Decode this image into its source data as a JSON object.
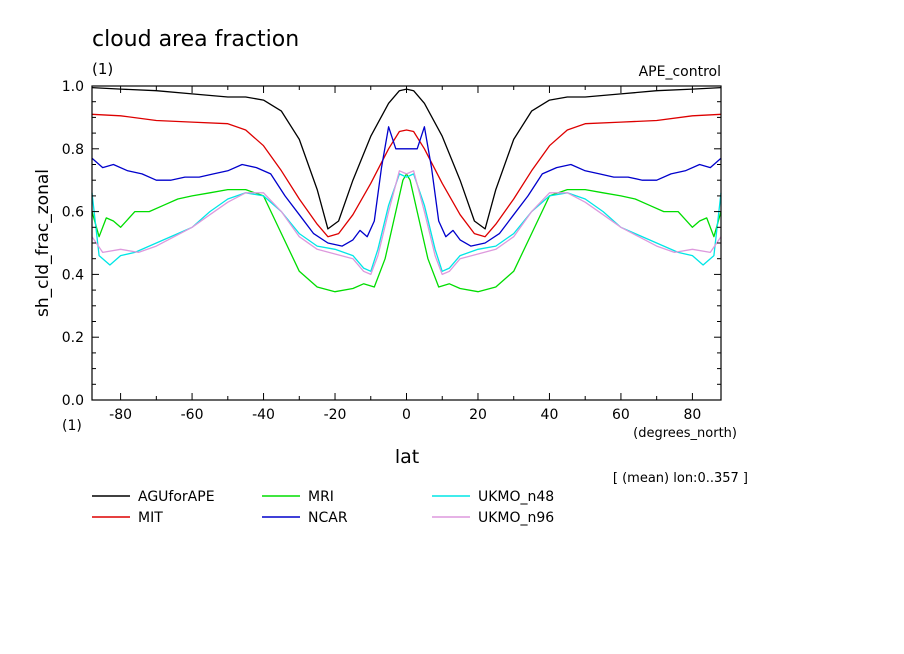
{
  "chart_data": {
    "type": "line",
    "title": "cloud area fraction",
    "units_top": "(1)",
    "units_bottom": "(1)",
    "experiment": "APE_control",
    "xlabel": "lat",
    "xunits": "(degrees_north)",
    "ylabel": "sh_cld_frac_zonal",
    "annotation": "[ (mean) lon:0..357 ]",
    "xlim": [
      -88,
      88
    ],
    "ylim": [
      0.0,
      1.0
    ],
    "xticks": [
      -80,
      -60,
      -40,
      -20,
      0,
      20,
      40,
      60,
      80
    ],
    "xtick_labels": [
      "-80",
      "-60",
      "-40",
      "-20",
      "0",
      "20",
      "40",
      "60",
      "80"
    ],
    "yticks": [
      0.0,
      0.2,
      0.4,
      0.6,
      0.8,
      1.0
    ],
    "ytick_labels": [
      "0.0",
      "0.2",
      "0.4",
      "0.6",
      "0.8",
      "1.0"
    ],
    "grid": false,
    "legend_position": "bottom",
    "series": [
      {
        "name": "AGUforAPE",
        "color": "#000000",
        "x": [
          -88,
          -80,
          -70,
          -60,
          -50,
          -45,
          -40,
          -35,
          -30,
          -25,
          -22,
          -19,
          -15,
          -10,
          -5,
          -2,
          0,
          2,
          5,
          10,
          15,
          19,
          22,
          25,
          30,
          35,
          40,
          45,
          50,
          60,
          70,
          80,
          88
        ],
        "y": [
          0.995,
          0.99,
          0.985,
          0.975,
          0.965,
          0.965,
          0.955,
          0.92,
          0.83,
          0.67,
          0.545,
          0.57,
          0.7,
          0.84,
          0.945,
          0.985,
          0.99,
          0.985,
          0.945,
          0.84,
          0.7,
          0.57,
          0.545,
          0.67,
          0.83,
          0.92,
          0.955,
          0.965,
          0.965,
          0.975,
          0.985,
          0.99,
          0.995
        ]
      },
      {
        "name": "MIT",
        "color": "#dd0000",
        "x": [
          -88,
          -80,
          -70,
          -60,
          -50,
          -45,
          -40,
          -35,
          -30,
          -25,
          -22,
          -19,
          -15,
          -10,
          -5,
          -2,
          0,
          2,
          5,
          10,
          15,
          19,
          22,
          25,
          30,
          35,
          40,
          45,
          50,
          60,
          70,
          80,
          88
        ],
        "y": [
          0.91,
          0.905,
          0.89,
          0.885,
          0.88,
          0.86,
          0.81,
          0.73,
          0.64,
          0.56,
          0.52,
          0.53,
          0.59,
          0.69,
          0.8,
          0.855,
          0.86,
          0.855,
          0.8,
          0.69,
          0.59,
          0.53,
          0.52,
          0.56,
          0.64,
          0.73,
          0.81,
          0.86,
          0.88,
          0.885,
          0.89,
          0.905,
          0.91
        ]
      },
      {
        "name": "MRI",
        "color": "#00dd00",
        "x": [
          -88,
          -86,
          -84,
          -82,
          -80,
          -76,
          -72,
          -68,
          -64,
          -60,
          -55,
          -50,
          -45,
          -40,
          -35,
          -30,
          -25,
          -20,
          -15,
          -12,
          -9,
          -6,
          -3,
          -1,
          0,
          1,
          3,
          6,
          9,
          12,
          15,
          20,
          25,
          30,
          35,
          40,
          45,
          50,
          55,
          60,
          64,
          68,
          72,
          76,
          80,
          82,
          84,
          86,
          88
        ],
        "y": [
          0.6,
          0.52,
          0.58,
          0.57,
          0.55,
          0.6,
          0.6,
          0.62,
          0.64,
          0.65,
          0.66,
          0.67,
          0.67,
          0.65,
          0.53,
          0.41,
          0.36,
          0.345,
          0.355,
          0.37,
          0.36,
          0.45,
          0.6,
          0.7,
          0.72,
          0.7,
          0.6,
          0.45,
          0.36,
          0.37,
          0.355,
          0.345,
          0.36,
          0.41,
          0.53,
          0.65,
          0.67,
          0.67,
          0.66,
          0.65,
          0.64,
          0.62,
          0.6,
          0.6,
          0.55,
          0.57,
          0.58,
          0.52,
          0.6
        ]
      },
      {
        "name": "NCAR",
        "color": "#0000cc",
        "x": [
          -88,
          -85,
          -82,
          -78,
          -74,
          -70,
          -66,
          -62,
          -58,
          -54,
          -50,
          -46,
          -42,
          -38,
          -34,
          -30,
          -26,
          -22,
          -18,
          -15,
          -13,
          -11,
          -9,
          -7,
          -5,
          -3,
          -1,
          0,
          1,
          3,
          5,
          7,
          9,
          11,
          13,
          15,
          18,
          22,
          26,
          30,
          34,
          38,
          42,
          46,
          50,
          54,
          58,
          62,
          66,
          70,
          74,
          78,
          82,
          85,
          88
        ],
        "y": [
          0.77,
          0.74,
          0.75,
          0.73,
          0.72,
          0.7,
          0.7,
          0.71,
          0.71,
          0.72,
          0.73,
          0.75,
          0.74,
          0.72,
          0.65,
          0.59,
          0.53,
          0.5,
          0.49,
          0.51,
          0.54,
          0.52,
          0.57,
          0.74,
          0.87,
          0.8,
          0.8,
          0.8,
          0.8,
          0.8,
          0.87,
          0.74,
          0.57,
          0.52,
          0.54,
          0.51,
          0.49,
          0.5,
          0.53,
          0.59,
          0.65,
          0.72,
          0.74,
          0.75,
          0.73,
          0.72,
          0.71,
          0.71,
          0.7,
          0.7,
          0.72,
          0.73,
          0.75,
          0.74,
          0.77
        ]
      },
      {
        "name": "UKMO_n48",
        "color": "#00e6e6",
        "x": [
          -88,
          -86,
          -83,
          -80,
          -76,
          -72,
          -68,
          -64,
          -60,
          -55,
          -50,
          -45,
          -40,
          -35,
          -30,
          -25,
          -20,
          -15,
          -12,
          -10,
          -8,
          -5,
          -2,
          0,
          2,
          5,
          8,
          10,
          12,
          15,
          20,
          25,
          30,
          35,
          40,
          45,
          50,
          55,
          60,
          64,
          68,
          72,
          76,
          80,
          83,
          86,
          88
        ],
        "y": [
          0.66,
          0.46,
          0.43,
          0.46,
          0.47,
          0.49,
          0.51,
          0.53,
          0.55,
          0.6,
          0.64,
          0.66,
          0.65,
          0.6,
          0.53,
          0.49,
          0.48,
          0.46,
          0.42,
          0.41,
          0.48,
          0.62,
          0.72,
          0.71,
          0.72,
          0.62,
          0.48,
          0.41,
          0.42,
          0.46,
          0.48,
          0.49,
          0.53,
          0.6,
          0.65,
          0.66,
          0.64,
          0.6,
          0.55,
          0.53,
          0.51,
          0.49,
          0.47,
          0.46,
          0.43,
          0.46,
          0.66
        ]
      },
      {
        "name": "UKMO_n96",
        "color": "#dd99dd",
        "x": [
          -88,
          -85,
          -80,
          -75,
          -70,
          -65,
          -60,
          -55,
          -50,
          -45,
          -40,
          -35,
          -30,
          -25,
          -20,
          -15,
          -12,
          -10,
          -8,
          -5,
          -2,
          0,
          2,
          5,
          8,
          10,
          12,
          15,
          20,
          25,
          30,
          35,
          40,
          45,
          50,
          55,
          60,
          65,
          70,
          75,
          80,
          85,
          88
        ],
        "y": [
          0.52,
          0.47,
          0.48,
          0.47,
          0.49,
          0.52,
          0.55,
          0.59,
          0.63,
          0.66,
          0.66,
          0.6,
          0.52,
          0.48,
          0.465,
          0.45,
          0.41,
          0.4,
          0.46,
          0.6,
          0.73,
          0.72,
          0.73,
          0.6,
          0.46,
          0.4,
          0.41,
          0.45,
          0.465,
          0.48,
          0.52,
          0.6,
          0.66,
          0.66,
          0.63,
          0.59,
          0.55,
          0.52,
          0.49,
          0.47,
          0.48,
          0.47,
          0.52
        ]
      }
    ]
  }
}
